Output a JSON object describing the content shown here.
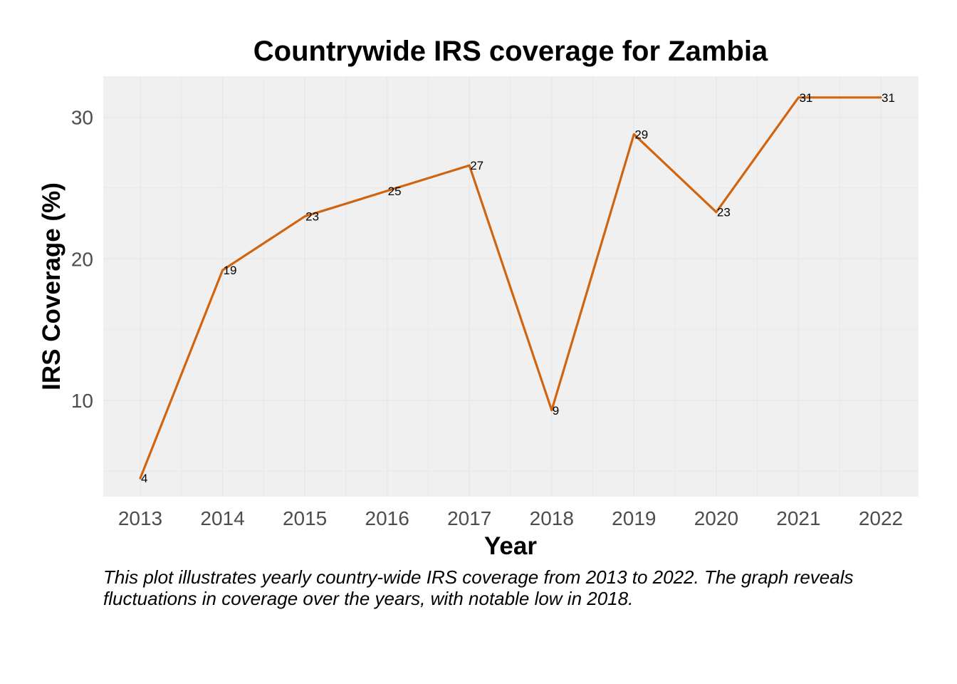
{
  "caption": "This plot illustrates yearly country-wide IRS coverage from 2013 to 2022. The graph reveals fluctuations in coverage over the years, with notable low in 2018.",
  "colors": {
    "line": "#d1640f",
    "panel_background": "#f0f0f0",
    "grid": "#e8e8e8"
  },
  "chart_data": {
    "type": "line",
    "title": "Countrywide IRS coverage for Zambia",
    "xlabel": "Year",
    "ylabel": "IRS Coverage (%)",
    "x": [
      2013,
      2014,
      2015,
      2016,
      2017,
      2018,
      2019,
      2020,
      2021,
      2022
    ],
    "x_tick_labels": [
      "2013",
      "2014",
      "2015",
      "2016",
      "2017",
      "2018",
      "2019",
      "2020",
      "2021",
      "2022"
    ],
    "y_ticks": [
      10,
      20,
      30
    ],
    "y_tick_labels": [
      "10",
      "20",
      "30"
    ],
    "ylim": [
      3.2,
      32.9
    ],
    "series": [
      {
        "values": [
          4.5,
          19.2,
          23,
          24.8,
          26.6,
          9.3,
          28.8,
          23.3,
          31.4,
          31.4
        ],
        "labels": [
          "4",
          "19",
          "23",
          "25",
          "27",
          "9",
          "29",
          "23",
          "31",
          "31"
        ]
      }
    ],
    "grid": true,
    "legend": "none"
  }
}
